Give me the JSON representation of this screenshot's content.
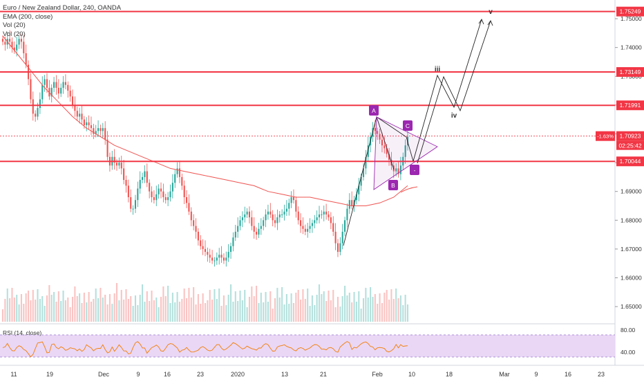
{
  "legend": {
    "symbol": "Euro / New Zealand Dollar, 240, OANDA",
    "ema": "EMA (200, close)",
    "vol1": "Vol (20)",
    "vol2": "Vol (20)"
  },
  "rsi_label": "RSI (14, close)",
  "price_tag": {
    "change": "-1.63%",
    "price": "1.70923",
    "countdown": "02:25:42"
  },
  "colors": {
    "up": "#26a69a",
    "down": "#ef5350",
    "level": "#f23645",
    "ema": "#ef5350",
    "wave": "#9c27b0",
    "rsi": "#f57c00",
    "rsi_band": "#e9d7f5"
  },
  "chart_data": {
    "type": "candlestick",
    "y_ticks": [
      "1.75000",
      "1.74000",
      "1.73000",
      "1.72000",
      "1.71000",
      "1.70000",
      "1.69000",
      "1.68000",
      "1.67000",
      "1.66000",
      "1.65000"
    ],
    "ylim": [
      1.6445,
      1.7565
    ],
    "x_ticks": [
      "11",
      "19",
      "Dec",
      "9",
      "16",
      "23",
      "2020",
      "13",
      "21",
      "Feb",
      "10",
      "18",
      "Mar",
      "9",
      "16",
      "23"
    ],
    "horizontal_levels": [
      "1.75249",
      "1.73149",
      "1.71991",
      "1.70044"
    ],
    "close_approx": [
      1.742,
      1.741,
      1.743,
      1.742,
      1.74,
      1.739,
      1.741,
      1.743,
      1.742,
      1.738,
      1.734,
      1.729,
      1.722,
      1.717,
      1.716,
      1.719,
      1.722,
      1.727,
      1.729,
      1.726,
      1.723,
      1.726,
      1.728,
      1.726,
      1.724,
      1.726,
      1.728,
      1.727,
      1.725,
      1.723,
      1.72,
      1.718,
      1.716,
      1.717,
      1.715,
      1.713,
      1.714,
      1.713,
      1.712,
      1.71,
      1.711,
      1.712,
      1.711,
      1.712,
      1.708,
      1.702,
      1.699,
      1.702,
      1.7,
      1.699,
      1.7,
      1.698,
      1.694,
      1.692,
      1.688,
      1.684,
      1.684,
      1.687,
      1.691,
      1.694,
      1.695,
      1.697,
      1.693,
      1.69,
      1.688,
      1.687,
      1.689,
      1.691,
      1.69,
      1.688,
      1.687,
      1.688,
      1.69,
      1.693,
      1.696,
      1.698,
      1.695,
      1.692,
      1.688,
      1.686,
      1.683,
      1.68,
      1.678,
      1.676,
      1.673,
      1.671,
      1.67,
      1.669,
      1.668,
      1.667,
      1.666,
      1.666,
      1.667,
      1.668,
      1.667,
      1.666,
      1.667,
      1.669,
      1.671,
      1.674,
      1.676,
      1.678,
      1.68,
      1.681,
      1.682,
      1.683,
      1.681,
      1.678,
      1.676,
      1.675,
      1.677,
      1.678,
      1.68,
      1.682,
      1.683,
      1.682,
      1.68,
      1.679,
      1.681,
      1.682,
      1.682,
      1.683,
      1.684,
      1.686,
      1.688,
      1.687,
      1.683,
      1.68,
      1.678,
      1.677,
      1.676,
      1.677,
      1.678,
      1.679,
      1.68,
      1.681,
      1.682,
      1.682,
      1.683,
      1.682,
      1.681,
      1.679,
      1.676,
      1.672,
      1.669,
      1.672,
      1.676,
      1.68,
      1.684,
      1.687,
      1.685,
      1.687,
      1.689,
      1.692,
      1.695,
      1.698,
      1.702,
      1.706,
      1.709,
      1.712,
      1.711,
      1.71,
      1.708,
      1.706,
      1.705,
      1.703,
      1.701,
      1.699,
      1.697,
      1.698,
      1.696,
      1.699,
      1.702,
      1.706,
      1.709
    ],
    "ema_approx": [
      1.744,
      1.738,
      1.732,
      1.726,
      1.721,
      1.716,
      1.712,
      1.709,
      1.706,
      1.704,
      1.702,
      1.7,
      1.698,
      1.697,
      1.696,
      1.695,
      1.694,
      1.693,
      1.692,
      1.69,
      1.689,
      1.688,
      1.688,
      1.687,
      1.686,
      1.685,
      1.685,
      1.686,
      1.688,
      1.692
    ],
    "wave_labels": [
      "A",
      "B",
      "C",
      "-",
      "iii",
      "iv",
      "v"
    ],
    "rsi_ticks": [
      "80.00",
      "40.00"
    ]
  }
}
